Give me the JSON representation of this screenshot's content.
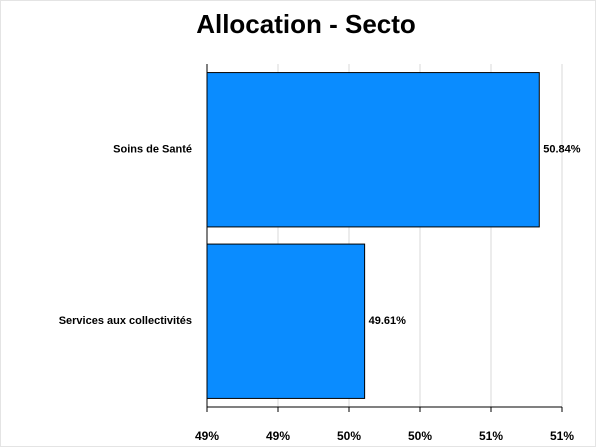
{
  "chart_data": {
    "type": "bar",
    "orientation": "horizontal",
    "title": "Allocation - Secto",
    "categories": [
      "Soins de Santé",
      "Services aux collectivités"
    ],
    "values": [
      50.84,
      49.61
    ],
    "value_labels": [
      "50.84%",
      "49.61%"
    ],
    "color": "#0a8cff",
    "xlim": [
      48.5,
      51.0
    ],
    "xticks": [
      {
        "value": 48.5,
        "label": "49%"
      },
      {
        "value": 49.0,
        "label": "49%"
      },
      {
        "value": 49.5,
        "label": "50%"
      },
      {
        "value": 50.0,
        "label": "50%"
      },
      {
        "value": 50.5,
        "label": "51%"
      },
      {
        "value": 51.0,
        "label": "51%"
      }
    ],
    "grid": true
  }
}
